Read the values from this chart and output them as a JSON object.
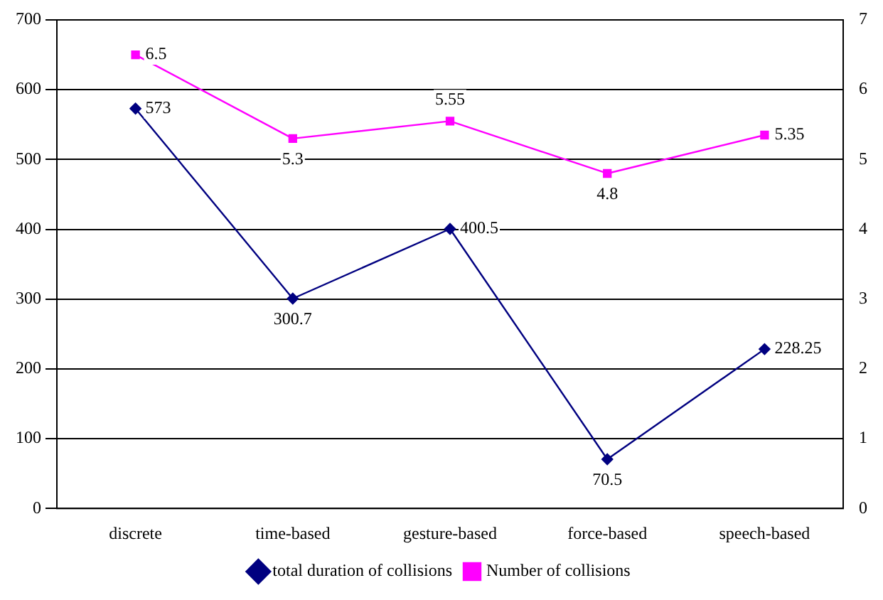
{
  "chart_data": {
    "type": "line",
    "categories": [
      "discrete",
      "time-based",
      "gesture-based",
      "force-based",
      "speech-based"
    ],
    "series": [
      {
        "name": "total duration of collisions",
        "color": "#000080",
        "values": [
          573,
          300.7,
          400.5,
          70.5,
          228.25
        ],
        "marker": "diamond"
      },
      {
        "name": "Number of collisions",
        "color": "#ff00ff",
        "values": [
          6.5,
          5.3,
          5.55,
          4.8,
          5.35
        ],
        "axis": "y2",
        "marker": "square"
      }
    ],
    "ylim": [
      0,
      700
    ],
    "yticks": [
      0,
      100,
      200,
      300,
      400,
      500,
      600,
      700
    ],
    "y2lim": [
      0,
      7
    ],
    "y2ticks": [
      0,
      1,
      2,
      3,
      4,
      5,
      6,
      7
    ],
    "grid": "y",
    "legend": "bottom",
    "data_labels": true
  }
}
